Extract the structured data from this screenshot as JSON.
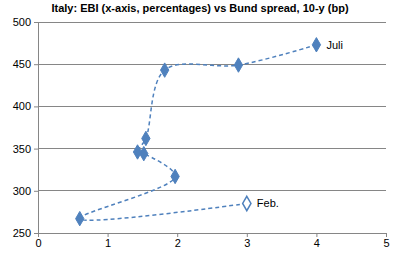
{
  "chart_data": {
    "type": "line",
    "title": "Italy: EBI (x-axis, percentages) vs Bund spread, 10-y (bp)",
    "x": [
      3.0,
      0.6,
      1.97,
      1.52,
      1.43,
      1.55,
      1.82,
      2.88,
      4.0
    ],
    "series": [
      {
        "color": "#4f81bd",
        "marker": "diamond",
        "line_style": "dashed",
        "values": [
          285,
          267,
          317,
          344,
          346,
          362,
          443,
          449,
          473
        ],
        "point_labels": [
          "Feb.",
          null,
          null,
          null,
          null,
          null,
          null,
          null,
          "Juli"
        ]
      }
    ],
    "xlim": [
      0,
      5
    ],
    "xticks": [
      0,
      1,
      2,
      3,
      4,
      5
    ],
    "ylim": [
      250,
      500
    ],
    "yticks": [
      250,
      300,
      350,
      400,
      450,
      500
    ],
    "grid": true
  }
}
